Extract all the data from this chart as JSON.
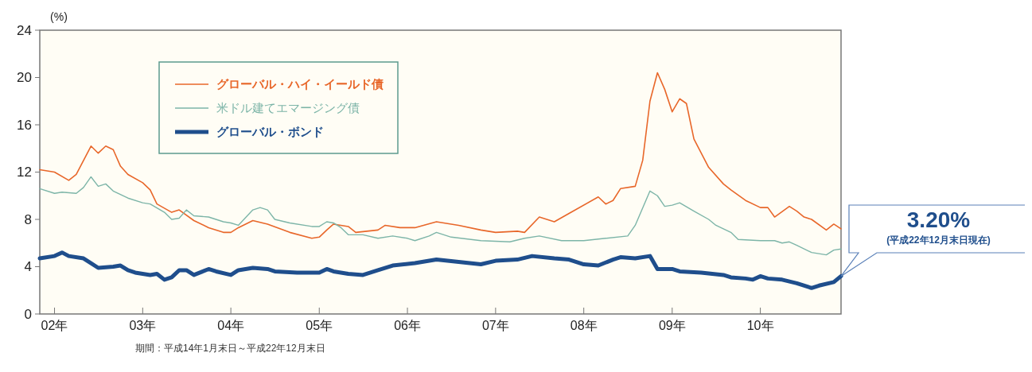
{
  "chart_data": {
    "type": "line",
    "ylabel": "(%)",
    "xlim": [
      "2001-11",
      "2010-12"
    ],
    "xticks": [
      {
        "value": "2002",
        "label": "02年"
      },
      {
        "value": "2003",
        "label": "03年"
      },
      {
        "value": "2004",
        "label": "04年"
      },
      {
        "value": "2005",
        "label": "05年"
      },
      {
        "value": "2006",
        "label": "06年"
      },
      {
        "value": "2007",
        "label": "07年"
      },
      {
        "value": "2008",
        "label": "08年"
      },
      {
        "value": "2009",
        "label": "09年"
      },
      {
        "value": "2010",
        "label": "10年"
      }
    ],
    "ylim": [
      0,
      24
    ],
    "yticks": [
      0,
      4,
      8,
      12,
      16,
      20,
      24
    ],
    "grid": false,
    "legend": "top left",
    "series": [
      {
        "name": "グローバル・ハイ・イールド債",
        "color": "#e8672a",
        "x": [
          "2001-11",
          "2002-01",
          "2002-03",
          "2002-04",
          "2002-06",
          "2002-07",
          "2002-08",
          "2002-09",
          "2002-10",
          "2002-11",
          "2003-01",
          "2003-02",
          "2003-03",
          "2003-05",
          "2003-06",
          "2003-08",
          "2003-10",
          "2003-12",
          "2004-01",
          "2004-02",
          "2004-04",
          "2004-06",
          "2004-09",
          "2004-12",
          "2005-01",
          "2005-02",
          "2005-03",
          "2005-05",
          "2005-06",
          "2005-09",
          "2005-10",
          "2005-12",
          "2006-02",
          "2006-05",
          "2006-08",
          "2006-11",
          "2007-01",
          "2007-04",
          "2007-05",
          "2007-07",
          "2007-09",
          "2007-11",
          "2008-03",
          "2008-04",
          "2008-05",
          "2008-06",
          "2008-08",
          "2008-09",
          "2008-10",
          "2008-11",
          "2008-12",
          "2009-01",
          "2009-02",
          "2009-03",
          "2009-04",
          "2009-06",
          "2009-08",
          "2009-09",
          "2009-11",
          "2010-01",
          "2010-02",
          "2010-03",
          "2010-05",
          "2010-06",
          "2010-07",
          "2010-08",
          "2010-10",
          "2010-11",
          "2010-12"
        ],
        "values": [
          12.2,
          12.0,
          11.3,
          11.8,
          14.2,
          13.6,
          14.2,
          13.9,
          12.5,
          11.8,
          11.1,
          10.5,
          9.3,
          8.6,
          8.8,
          7.9,
          7.3,
          6.9,
          6.9,
          7.3,
          7.9,
          7.6,
          6.9,
          6.4,
          6.5,
          7.1,
          7.6,
          7.4,
          6.9,
          7.1,
          7.5,
          7.3,
          7.3,
          7.8,
          7.5,
          7.1,
          6.9,
          7.0,
          6.9,
          8.2,
          7.8,
          8.5,
          9.9,
          9.3,
          9.6,
          10.6,
          10.8,
          13.0,
          18.0,
          20.4,
          19.0,
          17.1,
          18.2,
          17.8,
          14.8,
          12.4,
          11.0,
          10.5,
          9.6,
          9.0,
          9.0,
          8.2,
          9.1,
          8.7,
          8.2,
          8.0,
          7.1,
          7.6,
          7.2
        ]
      },
      {
        "name": "米ドル建てエマージング債",
        "color": "#7db5a8",
        "x": [
          "2001-11",
          "2002-01",
          "2002-02",
          "2002-04",
          "2002-05",
          "2002-06",
          "2002-07",
          "2002-08",
          "2002-09",
          "2002-11",
          "2003-01",
          "2003-02",
          "2003-04",
          "2003-05",
          "2003-06",
          "2003-07",
          "2003-08",
          "2003-10",
          "2003-12",
          "2004-01",
          "2004-02",
          "2004-04",
          "2004-05",
          "2004-06",
          "2004-07",
          "2004-09",
          "2004-12",
          "2005-01",
          "2005-02",
          "2005-03",
          "2005-04",
          "2005-05",
          "2005-07",
          "2005-09",
          "2005-11",
          "2006-01",
          "2006-02",
          "2006-04",
          "2006-05",
          "2006-07",
          "2006-11",
          "2007-03",
          "2007-05",
          "2007-07",
          "2007-10",
          "2008-01",
          "2008-04",
          "2008-07",
          "2008-08",
          "2008-10",
          "2008-11",
          "2008-12",
          "2009-01",
          "2009-02",
          "2009-04",
          "2009-06",
          "2009-07",
          "2009-09",
          "2009-10",
          "2010-01",
          "2010-03",
          "2010-04",
          "2010-05",
          "2010-06",
          "2010-08",
          "2010-10",
          "2010-11",
          "2010-12"
        ],
        "values": [
          10.6,
          10.2,
          10.3,
          10.2,
          10.7,
          11.6,
          10.8,
          11.0,
          10.4,
          9.8,
          9.4,
          9.3,
          8.6,
          8.0,
          8.1,
          8.8,
          8.3,
          8.2,
          7.8,
          7.7,
          7.5,
          8.8,
          9.0,
          8.8,
          8.0,
          7.7,
          7.4,
          7.4,
          7.8,
          7.7,
          7.3,
          6.7,
          6.7,
          6.4,
          6.6,
          6.4,
          6.2,
          6.6,
          6.9,
          6.5,
          6.2,
          6.1,
          6.4,
          6.6,
          6.2,
          6.2,
          6.4,
          6.6,
          7.5,
          10.4,
          10.0,
          9.1,
          9.2,
          9.4,
          8.7,
          8.0,
          7.5,
          6.9,
          6.3,
          6.2,
          6.2,
          6.0,
          6.1,
          5.8,
          5.2,
          5.0,
          5.4,
          5.5
        ]
      },
      {
        "name": "グローバル・ボンド",
        "color": "#1f4e8c",
        "x": [
          "2001-11",
          "2002-01",
          "2002-02",
          "2002-03",
          "2002-05",
          "2002-06",
          "2002-07",
          "2002-09",
          "2002-10",
          "2002-11",
          "2002-12",
          "2003-02",
          "2003-03",
          "2003-04",
          "2003-05",
          "2003-06",
          "2003-07",
          "2003-08",
          "2003-10",
          "2003-11",
          "2004-01",
          "2004-02",
          "2004-04",
          "2004-06",
          "2004-07",
          "2004-10",
          "2005-01",
          "2005-02",
          "2005-03",
          "2005-05",
          "2005-07",
          "2005-08",
          "2005-09",
          "2005-11",
          "2006-02",
          "2006-05",
          "2006-08",
          "2006-11",
          "2007-01",
          "2007-04",
          "2007-06",
          "2007-09",
          "2007-11",
          "2008-01",
          "2008-03",
          "2008-05",
          "2008-06",
          "2008-08",
          "2008-10",
          "2008-11",
          "2009-01",
          "2009-02",
          "2009-05",
          "2009-08",
          "2009-09",
          "2009-11",
          "2009-12",
          "2010-01",
          "2010-02",
          "2010-04",
          "2010-06",
          "2010-08",
          "2010-09",
          "2010-11",
          "2010-12"
        ],
        "values": [
          4.7,
          4.9,
          5.2,
          4.9,
          4.7,
          4.3,
          3.9,
          4.0,
          4.1,
          3.7,
          3.5,
          3.3,
          3.4,
          2.9,
          3.1,
          3.7,
          3.7,
          3.3,
          3.8,
          3.6,
          3.3,
          3.7,
          3.9,
          3.8,
          3.6,
          3.5,
          3.5,
          3.8,
          3.6,
          3.4,
          3.3,
          3.5,
          3.7,
          4.1,
          4.3,
          4.6,
          4.4,
          4.2,
          4.5,
          4.6,
          4.9,
          4.7,
          4.6,
          4.2,
          4.1,
          4.6,
          4.8,
          4.7,
          4.9,
          3.8,
          3.8,
          3.6,
          3.5,
          3.3,
          3.1,
          3.0,
          2.9,
          3.2,
          3.0,
          2.9,
          2.6,
          2.2,
          2.4,
          2.7,
          3.2
        ]
      }
    ],
    "annotations": [
      "3.20%",
      "(平成22年12月末日現在)",
      "期間：平成14年1月末日～平成22年12月末日"
    ]
  }
}
